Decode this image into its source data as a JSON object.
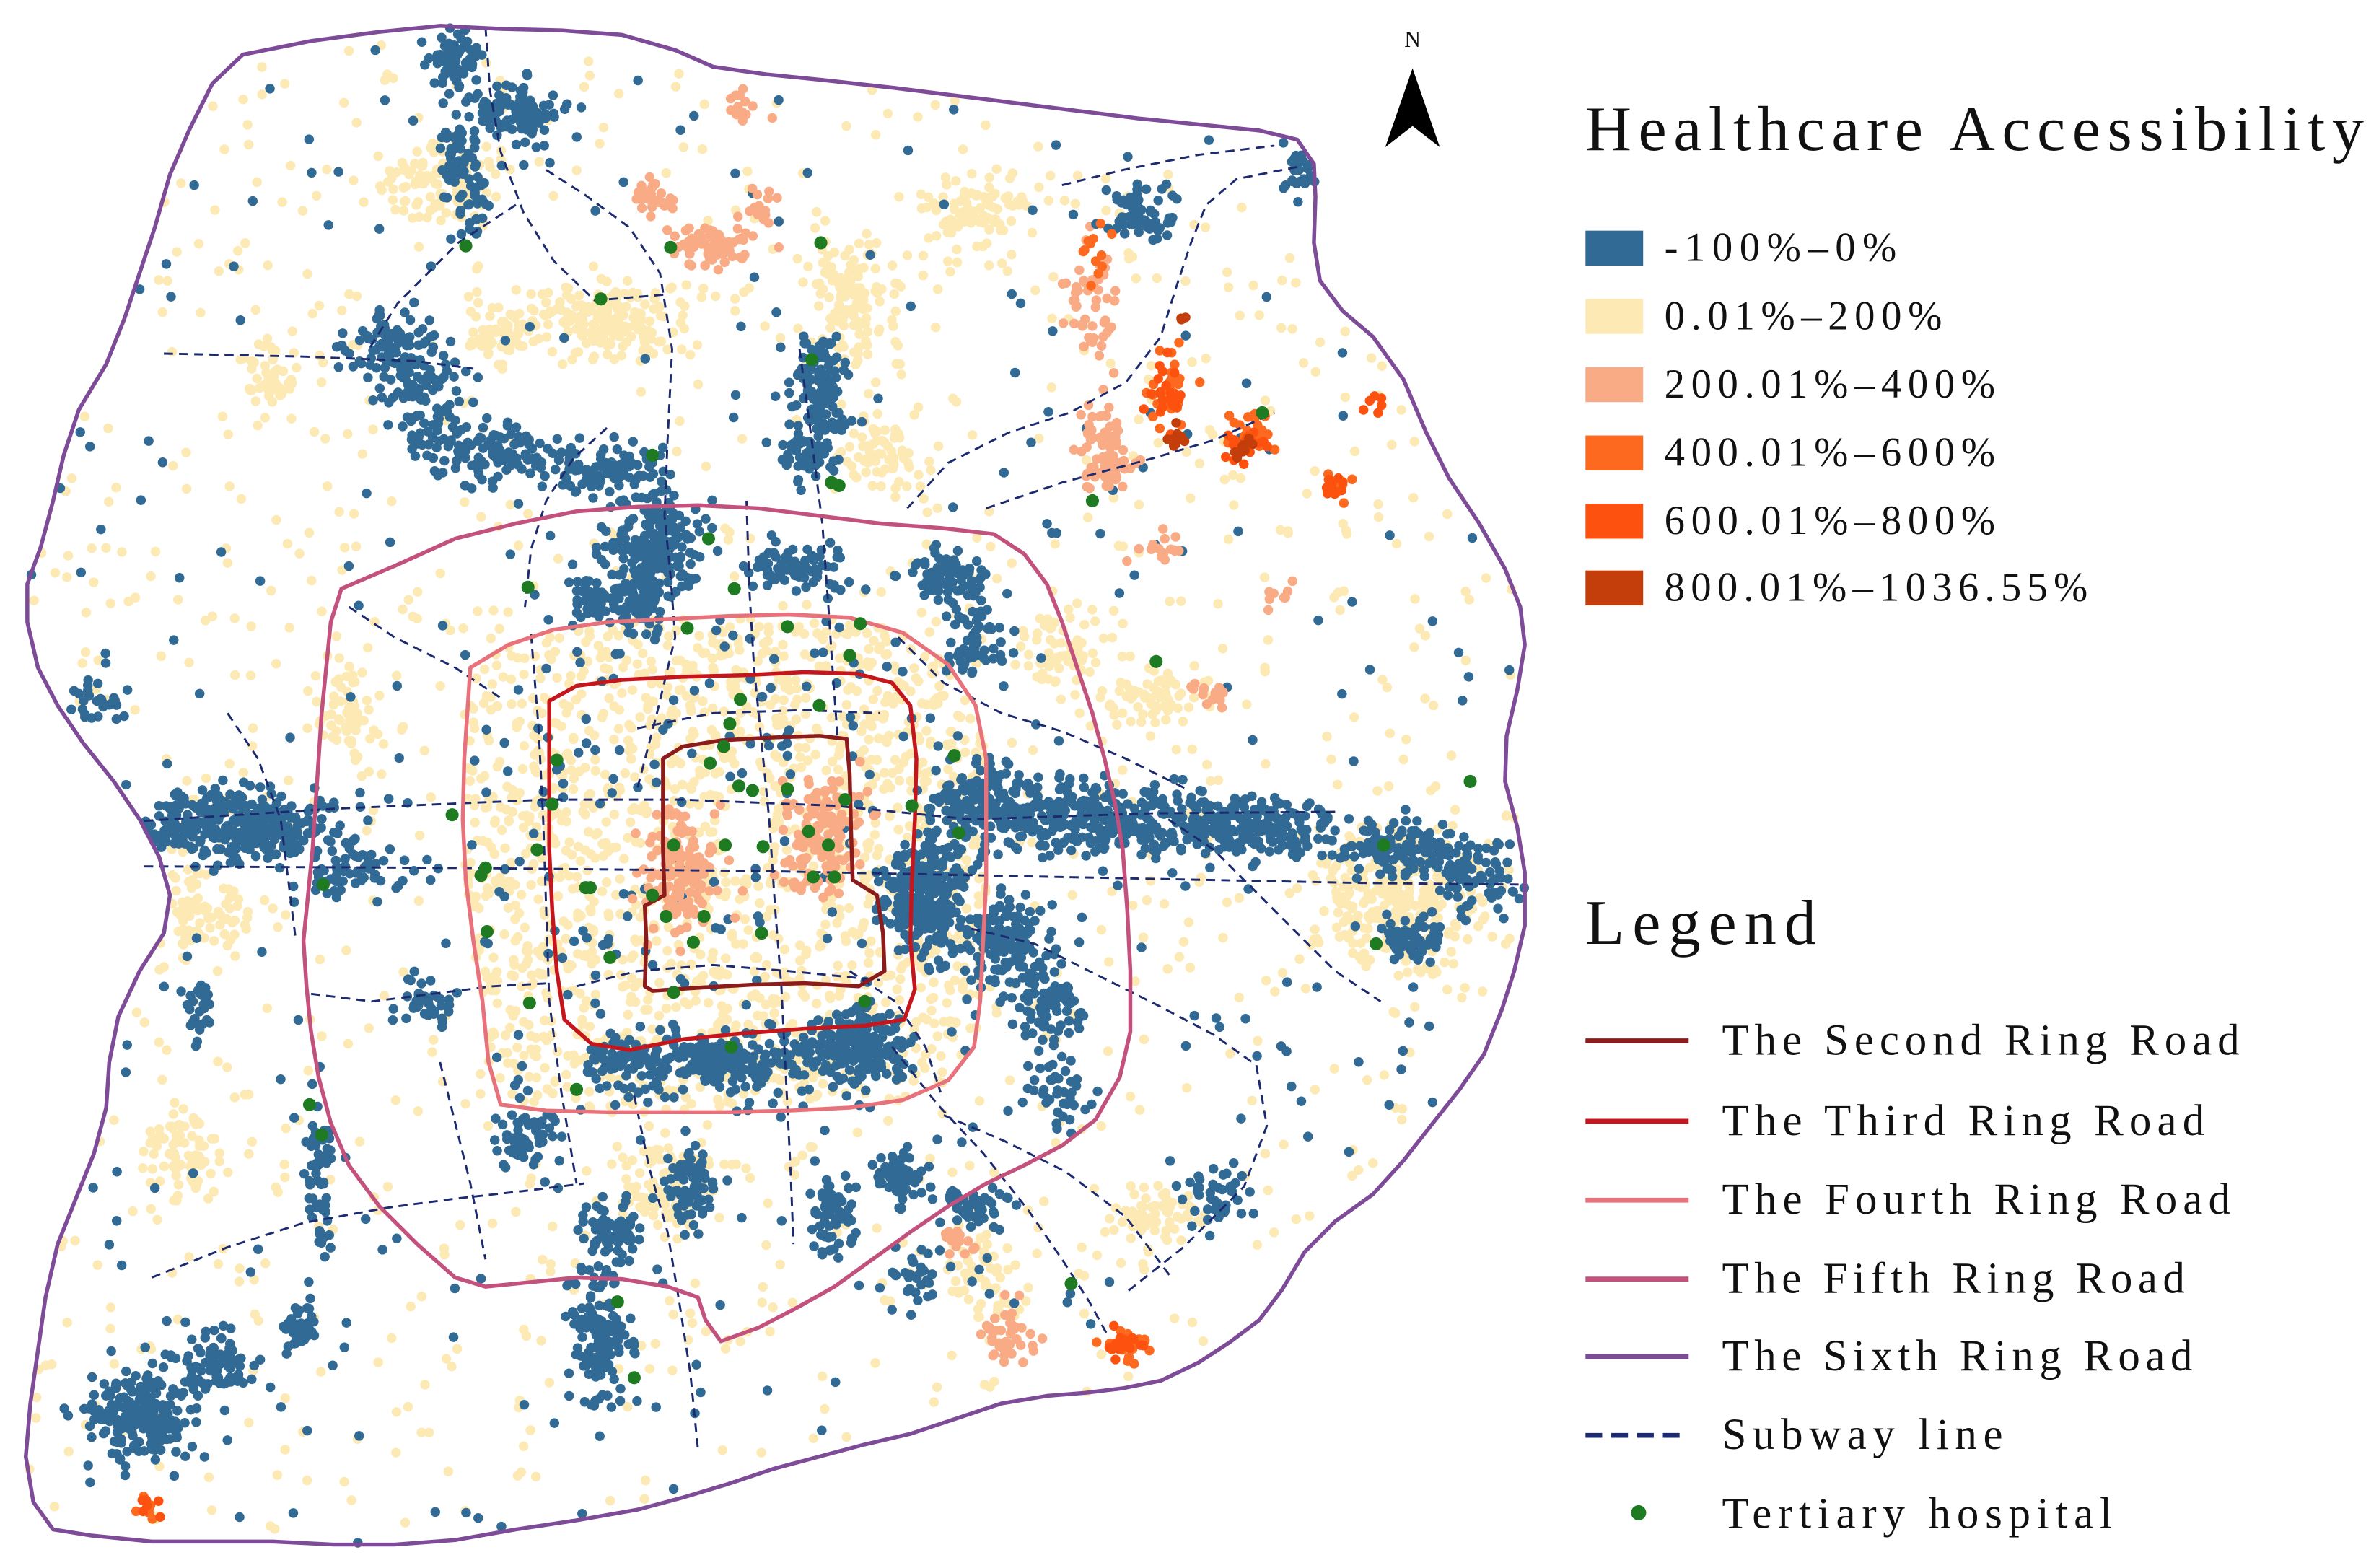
{
  "north_arrow": {
    "label": "N"
  },
  "accessibility_legend": {
    "title": "Healthcare Accessibility",
    "classes": [
      {
        "label": "-100%–0%",
        "color": "#306a95"
      },
      {
        "label": "0.01%–200%",
        "color": "#fde9b4"
      },
      {
        "label": "200.01%–400%",
        "color": "#f9ab85"
      },
      {
        "label": "400.01%–600%",
        "color": "#fd691e"
      },
      {
        "label": "600.01%–800%",
        "color": "#fd520f"
      },
      {
        "label": "800.01%–1036.55%",
        "color": "#c43e0c"
      }
    ]
  },
  "legend": {
    "title": "Legend",
    "items": [
      {
        "label": "The Second Ring Road",
        "color": "#8c1c1c",
        "symbol": "line"
      },
      {
        "label": "The Third Ring Road",
        "color": "#c4161c",
        "symbol": "line"
      },
      {
        "label": "The Fourth Ring Road",
        "color": "#e8727b",
        "symbol": "line"
      },
      {
        "label": "The Fifth Ring Road",
        "color": "#c3517d",
        "symbol": "line"
      },
      {
        "label": "The Sixth Ring Road",
        "color": "#7e4b98",
        "symbol": "line"
      },
      {
        "label": "Subway line",
        "color": "#1c2a70",
        "symbol": "dashed-line"
      },
      {
        "label": "Tertiary hospital",
        "color": "#1e7b22",
        "symbol": "dot"
      }
    ]
  }
}
